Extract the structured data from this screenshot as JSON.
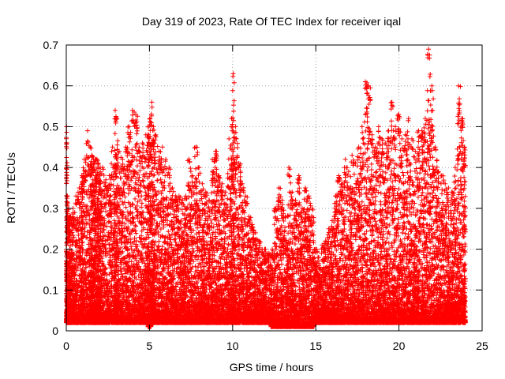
{
  "chart_data": {
    "type": "scatter",
    "title": "Day 319 of 2023, Rate Of TEC Index for receiver iqal",
    "xlabel": "GPS time / hours",
    "ylabel": "ROTI / TECUs",
    "xlim": [
      0,
      25
    ],
    "ylim": [
      0,
      0.7
    ],
    "xticks": [
      0,
      5,
      10,
      15,
      20,
      25
    ],
    "yticks": [
      0,
      0.1,
      0.2,
      0.3,
      0.4,
      0.5,
      0.6,
      0.7
    ],
    "xtick_labels": [
      "0",
      "5",
      "10",
      "15",
      "20",
      "25"
    ],
    "ytick_labels": [
      "0",
      "0.1",
      "0.2",
      "0.3",
      "0.4",
      "0.5",
      "0.6",
      "0.7"
    ],
    "grid": true,
    "legend": "none",
    "marker": "+",
    "color": "#ff0000",
    "series": [
      {
        "x": [
          0.0,
          0.05,
          0.1,
          0.2,
          0.35,
          0.5,
          0.7,
          0.9,
          1.0,
          1.2,
          1.4,
          1.5,
          1.6,
          1.7,
          1.8,
          1.9,
          2.0,
          2.1,
          2.3,
          2.5,
          2.7,
          2.9,
          3.0,
          3.1,
          3.3,
          3.5,
          3.7,
          3.9,
          4.1,
          4.3,
          4.5,
          4.7,
          4.9,
          5.0,
          5.1,
          5.2,
          5.3,
          5.5,
          5.7,
          5.9,
          6.1,
          6.3,
          6.5,
          6.7,
          6.9,
          7.1,
          7.3,
          7.5,
          7.7,
          7.9,
          8.1,
          8.3,
          8.5,
          8.7,
          8.9,
          9.1,
          9.3,
          9.5,
          9.7,
          9.9,
          10.0,
          10.1,
          10.3,
          10.5,
          10.7,
          10.9,
          11.1,
          11.3,
          11.5,
          11.7,
          11.9,
          12.1,
          12.3,
          12.5,
          12.7,
          12.9,
          13.1,
          13.3,
          13.5,
          13.7,
          13.9,
          14.1,
          14.3,
          14.5,
          14.7,
          14.9,
          15.1,
          15.3,
          15.5,
          15.7,
          15.9,
          16.1,
          16.3,
          16.5,
          16.7,
          16.9,
          17.1,
          17.3,
          17.5,
          17.7,
          17.9,
          18.1,
          18.3,
          18.5,
          18.7,
          18.9,
          19.1,
          19.3,
          19.5,
          19.7,
          19.9,
          20.1,
          20.3,
          20.5,
          20.7,
          20.9,
          21.1,
          21.3,
          21.5,
          21.7,
          21.9,
          22.1,
          22.3,
          22.5,
          22.7,
          22.9,
          23.1,
          23.3,
          23.5,
          23.7,
          23.9
        ],
        "upper": [
          0.5,
          0.33,
          0.3,
          0.28,
          0.3,
          0.33,
          0.35,
          0.38,
          0.42,
          0.49,
          0.45,
          0.43,
          0.42,
          0.42,
          0.42,
          0.41,
          0.4,
          0.4,
          0.37,
          0.38,
          0.45,
          0.54,
          0.52,
          0.44,
          0.42,
          0.45,
          0.5,
          0.54,
          0.53,
          0.45,
          0.46,
          0.48,
          0.5,
          0.52,
          0.56,
          0.5,
          0.48,
          0.44,
          0.45,
          0.42,
          0.4,
          0.35,
          0.33,
          0.33,
          0.32,
          0.33,
          0.42,
          0.38,
          0.45,
          0.4,
          0.36,
          0.34,
          0.32,
          0.42,
          0.44,
          0.38,
          0.36,
          0.34,
          0.47,
          0.52,
          0.63,
          0.5,
          0.41,
          0.36,
          0.33,
          0.28,
          0.26,
          0.24,
          0.22,
          0.2,
          0.2,
          0.19,
          0.2,
          0.3,
          0.35,
          0.32,
          0.28,
          0.4,
          0.34,
          0.32,
          0.38,
          0.3,
          0.35,
          0.33,
          0.3,
          0.2,
          0.18,
          0.21,
          0.22,
          0.25,
          0.27,
          0.33,
          0.38,
          0.36,
          0.42,
          0.39,
          0.43,
          0.41,
          0.45,
          0.5,
          0.61,
          0.6,
          0.48,
          0.45,
          0.5,
          0.47,
          0.46,
          0.49,
          0.56,
          0.5,
          0.53,
          0.47,
          0.48,
          0.52,
          0.47,
          0.44,
          0.49,
          0.49,
          0.52,
          0.69,
          0.6,
          0.45,
          0.39,
          0.38,
          0.36,
          0.35,
          0.34,
          0.4,
          0.6,
          0.52,
          0.45
        ],
        "lower": [
          0.02,
          0.02,
          0.02,
          0.02,
          0.02,
          0.02,
          0.02,
          0.02,
          0.02,
          0.02,
          0.02,
          0.02,
          0.02,
          0.02,
          0.02,
          0.02,
          0.02,
          0.02,
          0.02,
          0.02,
          0.02,
          0.02,
          0.02,
          0.02,
          0.02,
          0.02,
          0.02,
          0.02,
          0.02,
          0.02,
          0.02,
          0.02,
          0.01,
          0.01,
          0.02,
          0.02,
          0.02,
          0.02,
          0.02,
          0.02,
          0.02,
          0.02,
          0.02,
          0.02,
          0.02,
          0.02,
          0.02,
          0.02,
          0.02,
          0.02,
          0.02,
          0.02,
          0.02,
          0.02,
          0.02,
          0.02,
          0.02,
          0.02,
          0.02,
          0.02,
          0.02,
          0.02,
          0.02,
          0.02,
          0.02,
          0.02,
          0.02,
          0.02,
          0.02,
          0.02,
          0.02,
          0.02,
          0.01,
          0.01,
          0.01,
          0.01,
          0.01,
          0.01,
          0.01,
          0.01,
          0.01,
          0.01,
          0.01,
          0.01,
          0.01,
          0.02,
          0.02,
          0.02,
          0.02,
          0.02,
          0.02,
          0.02,
          0.02,
          0.02,
          0.02,
          0.02,
          0.02,
          0.02,
          0.02,
          0.02,
          0.02,
          0.02,
          0.02,
          0.02,
          0.02,
          0.02,
          0.02,
          0.02,
          0.02,
          0.02,
          0.02,
          0.02,
          0.02,
          0.02,
          0.02,
          0.02,
          0.02,
          0.02,
          0.02,
          0.02,
          0.02,
          0.02,
          0.02,
          0.02,
          0.02,
          0.02,
          0.02,
          0.02,
          0.02,
          0.02,
          0.02
        ]
      }
    ]
  }
}
